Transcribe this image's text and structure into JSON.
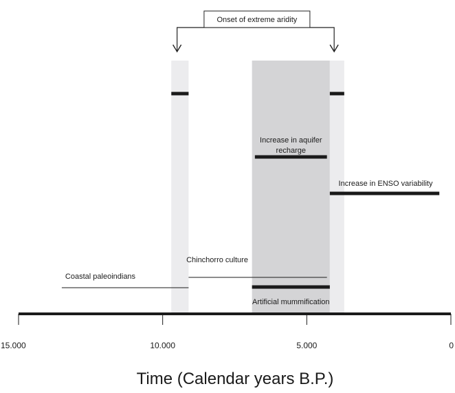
{
  "chart_data": {
    "type": "timeline",
    "axis": {
      "title": "Time (Calendar years B.P.)",
      "range": [
        15000,
        0
      ],
      "ticks": [
        {
          "value": 15000,
          "label": "15.000"
        },
        {
          "value": 10000,
          "label": "10.000"
        },
        {
          "value": 5000,
          "label": "5.000"
        },
        {
          "value": 0,
          "label": "0"
        }
      ]
    },
    "shaded_periods": [
      {
        "id": "aridity-onset-early",
        "start": 9700,
        "end": 9100,
        "color": "#ececee"
      },
      {
        "id": "aquifer-recharge-period",
        "start": 6900,
        "end": 4200,
        "color": "#d4d4d6"
      },
      {
        "id": "aridity-onset-late",
        "start": 4200,
        "end": 3700,
        "color": "#ececee"
      }
    ],
    "bracket": {
      "label": "Onset of extreme aridity",
      "arrow_targets": [
        9500,
        4050
      ]
    },
    "events": [
      {
        "id": "arid-marker-early",
        "label": "",
        "start": 9700,
        "end": 9100,
        "weight": "thick"
      },
      {
        "id": "arid-marker-late",
        "label": "",
        "start": 4200,
        "end": 3700,
        "weight": "thick"
      },
      {
        "id": "aquifer-recharge",
        "label_lines": [
          "Increase in aquifer",
          "recharge"
        ],
        "start": 6800,
        "end": 4300,
        "weight": "thick",
        "label_position": "above"
      },
      {
        "id": "enso-variability",
        "label": "Increase in ENSO variability",
        "start": 4200,
        "end": 400,
        "weight": "thick",
        "label_position": "above"
      },
      {
        "id": "chinchorro-culture",
        "label": "Chinchorro culture",
        "start": 9100,
        "end": 4300,
        "weight": "thin",
        "label_position": "above"
      },
      {
        "id": "coastal-paleoindians",
        "label": "Coastal paleoindians",
        "start": 13500,
        "end": 9100,
        "weight": "thin",
        "label_position": "above"
      },
      {
        "id": "artificial-mummification",
        "label": "Artificial mummification",
        "start": 6900,
        "end": 4200,
        "weight": "thick",
        "label_position": "below"
      }
    ]
  }
}
